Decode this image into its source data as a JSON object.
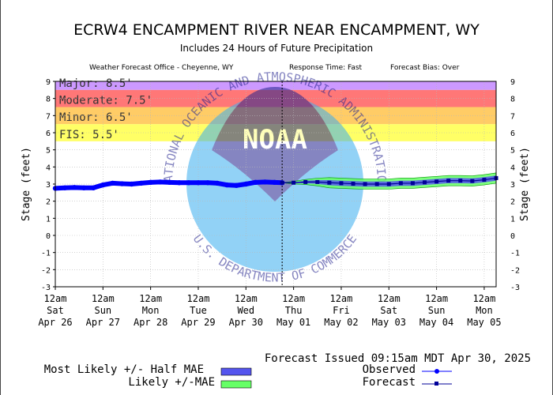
{
  "header": {
    "title": "ECRW4 ENCAMPMENT RIVER NEAR ENCAMPMENT, WY",
    "subtitle": "Includes  24 Hours of Future Precipitation",
    "office": "Weather Forecast Office - Cheyenne, WY",
    "response_time": "Response Time: Fast",
    "forecast_bias": "Forecast Bias:  Over"
  },
  "watermark": {
    "center_text": "NOAA",
    "ring_top": "NATIONAL OCEANIC AND ATMOSPHERIC ADMINISTRATION",
    "ring_bottom": "U.S. DEPARTMENT OF COMMERCE"
  },
  "chart_data": {
    "type": "line",
    "ylabel": "Stage (feet)",
    "ylim": [
      -3,
      9
    ],
    "yticks": [
      "-3",
      "-2",
      "-1",
      "0",
      "1",
      "2",
      "3",
      "4",
      "5",
      "6",
      "7",
      "8",
      "9"
    ],
    "xlim": [
      0,
      9.25
    ],
    "xticks": [
      {
        "x": 0,
        "time": "12am",
        "day": "Sat",
        "date": "Apr 26"
      },
      {
        "x": 1,
        "time": "12am",
        "day": "Sun",
        "date": "Apr 27"
      },
      {
        "x": 2,
        "time": "12am",
        "day": "Mon",
        "date": "Apr 28"
      },
      {
        "x": 3,
        "time": "12am",
        "day": "Tue",
        "date": "Apr 29"
      },
      {
        "x": 4,
        "time": "12am",
        "day": "Wed",
        "date": "Apr 30"
      },
      {
        "x": 5,
        "time": "12am",
        "day": "Thu",
        "date": "May 01"
      },
      {
        "x": 6,
        "time": "12am",
        "day": "Fri",
        "date": "May 02"
      },
      {
        "x": 7,
        "time": "12am",
        "day": "Sat",
        "date": "May 03"
      },
      {
        "x": 8,
        "time": "12am",
        "day": "Sun",
        "date": "May 04"
      },
      {
        "x": 9,
        "time": "12am",
        "day": "Mon",
        "date": "May 05"
      }
    ],
    "flood_categories": [
      {
        "label": "Major: 8.5'",
        "from": 8.5,
        "to": 9,
        "color": "#cc99ff"
      },
      {
        "label": "Moderate: 7.5'",
        "from": 7.5,
        "to": 8.5,
        "color": "#ff7777"
      },
      {
        "label": "Minor: 6.5'",
        "from": 6.5,
        "to": 7.5,
        "color": "#ffcc66"
      },
      {
        "label": "FIS: 5.5'",
        "from": 5.5,
        "to": 6.5,
        "color": "#ffff66"
      }
    ],
    "issued_x": 4.76,
    "observed": {
      "name": "Observed",
      "color": "#0000ff",
      "x": [
        0,
        0.2,
        0.4,
        0.6,
        0.8,
        1,
        1.2,
        1.4,
        1.6,
        1.8,
        2,
        2.2,
        2.4,
        2.6,
        2.8,
        3,
        3.2,
        3.4,
        3.6,
        3.8,
        4,
        4.2,
        4.4,
        4.6,
        4.76
      ],
      "y": [
        2.75,
        2.78,
        2.8,
        2.78,
        2.78,
        2.95,
        3.05,
        3.02,
        3,
        3.05,
        3.1,
        3.12,
        3.1,
        3.08,
        3.08,
        3.08,
        3.08,
        3.05,
        2.95,
        2.92,
        3.0,
        3.1,
        3.12,
        3.1,
        3.08
      ]
    },
    "forecast": {
      "name": "Forecast",
      "color": "#000099",
      "x": [
        4.76,
        5.0,
        5.25,
        5.5,
        5.75,
        6.0,
        6.25,
        6.5,
        6.75,
        7.0,
        7.25,
        7.5,
        7.75,
        8.0,
        8.25,
        8.5,
        8.75,
        9.0,
        9.25
      ],
      "y": [
        3.08,
        3.08,
        3.12,
        3.12,
        3.08,
        3.05,
        3.02,
        3.0,
        3.0,
        3.0,
        3.05,
        3.05,
        3.1,
        3.15,
        3.2,
        3.2,
        3.18,
        3.25,
        3.35
      ]
    },
    "mae_band": {
      "name": "Likely +/-MAE",
      "color": "#66ff66",
      "width": 0.3
    },
    "half_mae_band": {
      "name": "Most Likely +/- Half MAE",
      "color": "#5555ee",
      "width": 0.15
    }
  },
  "footer": {
    "issued": "Forecast Issued 09:15am MDT Apr 30, 2025",
    "legend": [
      {
        "label": "Most Likely +/- Half MAE",
        "kind": "box",
        "color": "#5555ee"
      },
      {
        "label": "Likely +/-MAE",
        "kind": "box",
        "color": "#66ff66"
      },
      {
        "label": "Observed",
        "kind": "line",
        "color": "#0000ff"
      },
      {
        "label": "Forecast",
        "kind": "line",
        "color": "#000099"
      }
    ]
  }
}
